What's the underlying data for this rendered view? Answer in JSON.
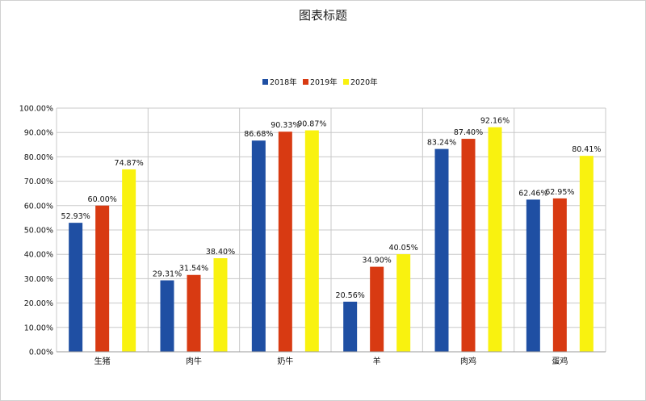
{
  "chart_data": {
    "type": "bar",
    "title": "图表标题",
    "categories": [
      "生猪",
      "肉牛",
      "奶牛",
      "羊",
      "肉鸡",
      "蛋鸡"
    ],
    "series": [
      {
        "name": "2018年",
        "color": "#1f4fa3",
        "values": [
          52.93,
          29.31,
          86.68,
          20.56,
          83.24,
          62.46
        ]
      },
      {
        "name": "2019年",
        "color": "#d83a12",
        "values": [
          60.0,
          31.54,
          90.33,
          34.9,
          87.4,
          62.95
        ]
      },
      {
        "name": "2020年",
        "color": "#f9f20f",
        "values": [
          74.87,
          38.4,
          90.87,
          40.05,
          92.16,
          80.41
        ]
      }
    ],
    "value_labels": [
      [
        "52.93%",
        "29.31%",
        "86.68%",
        "20.56%",
        "83.24%",
        "62.46%"
      ],
      [
        "60.00%",
        "31.54%",
        "90.33%",
        "34.90%",
        "87.40%",
        "62.95%"
      ],
      [
        "74.87%",
        "38.40%",
        "90.87%",
        "40.05%",
        "92.16%",
        "80.41%"
      ]
    ],
    "ylim": [
      0,
      100
    ],
    "yticks": [
      "0.00%",
      "10.00%",
      "20.00%",
      "30.00%",
      "40.00%",
      "50.00%",
      "60.00%",
      "70.00%",
      "80.00%",
      "90.00%",
      "100.00%"
    ],
    "grid": true,
    "legend_position": "top"
  }
}
